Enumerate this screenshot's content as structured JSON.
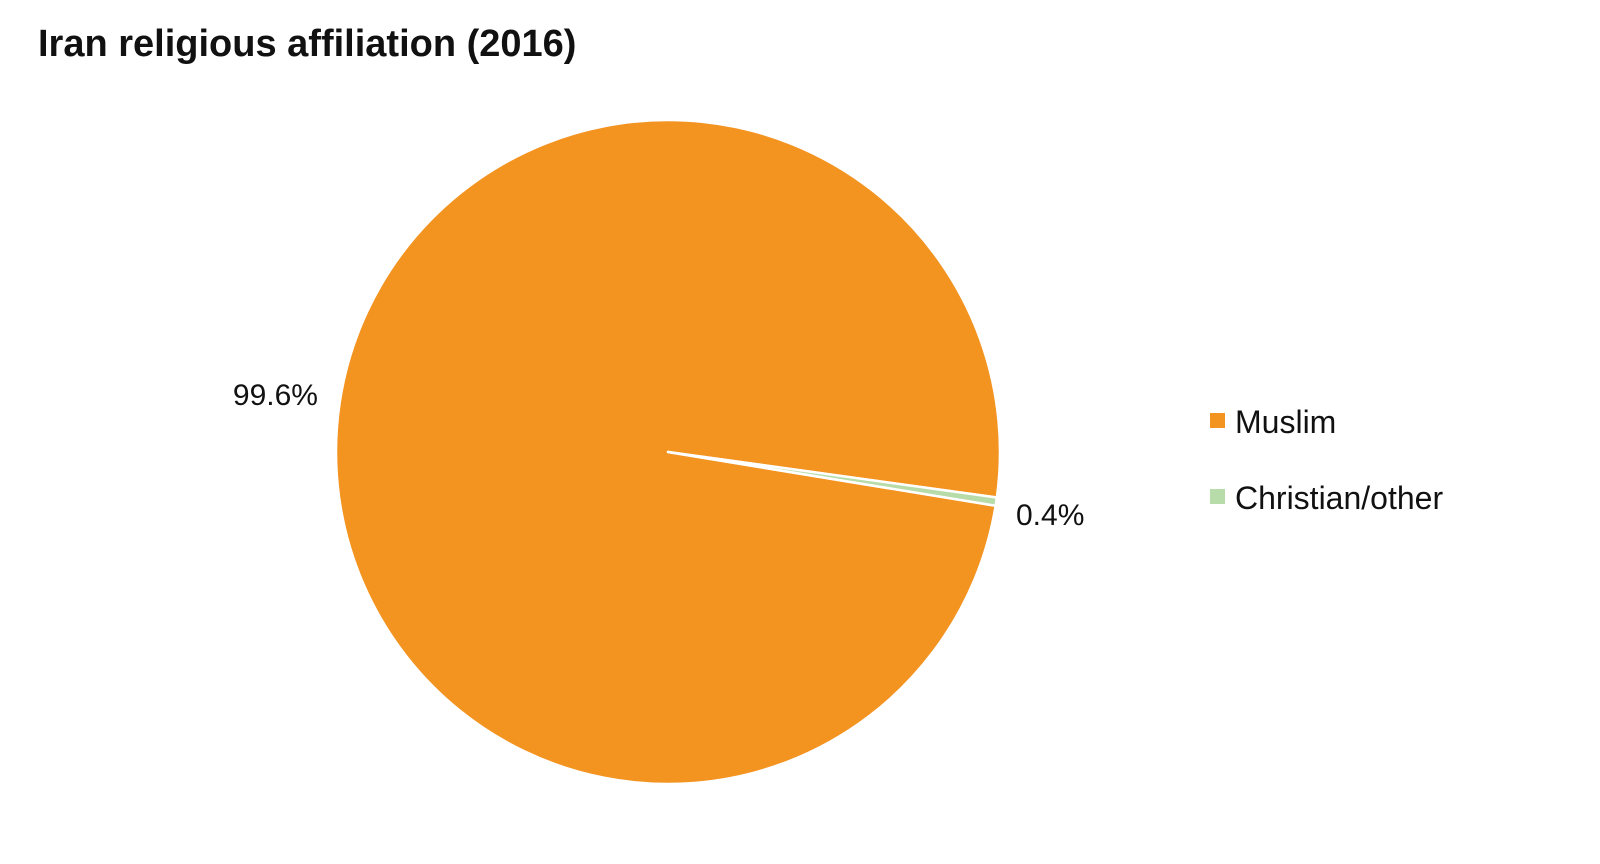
{
  "chart_data": {
    "type": "pie",
    "title": "Iran religious affiliation (2016)",
    "categories": [
      "Muslim",
      "Christian/other"
    ],
    "values": [
      99.6,
      0.4
    ],
    "data_labels": [
      "99.6%",
      "0.4%"
    ],
    "colors": [
      "#f39320",
      "#b8dca9"
    ],
    "legend_position": "right",
    "start_angle_note": "Muslim slice spans most of the circle; Christian/other slice sits on the right just below horizontal"
  }
}
